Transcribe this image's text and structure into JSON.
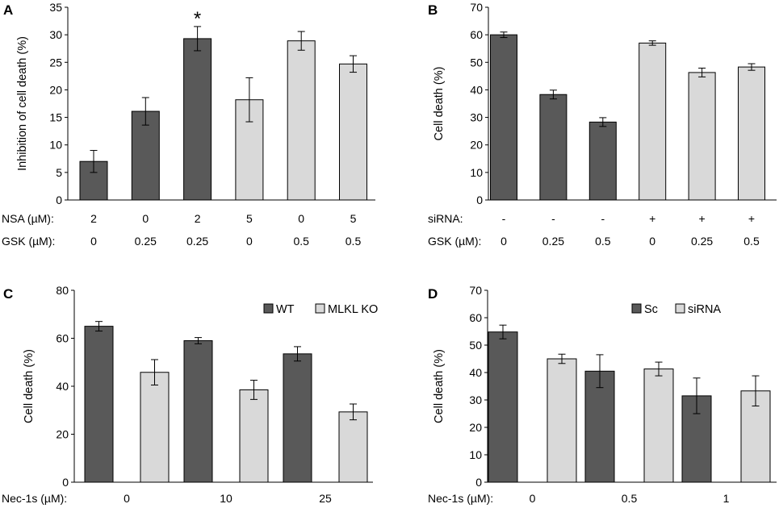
{
  "chart_data": [
    {
      "type": "bar",
      "panel": "A",
      "ylabel": "Inhibition of cell death (%)",
      "ylim": [
        0,
        35
      ],
      "yticks": [
        0,
        5,
        10,
        15,
        20,
        25,
        30,
        35
      ],
      "values": [
        7.0,
        16.1,
        29.3,
        18.2,
        28.9,
        24.7
      ],
      "errors": [
        2.0,
        2.5,
        2.2,
        4.0,
        1.7,
        1.5
      ],
      "colors": [
        "#595959",
        "#595959",
        "#595959",
        "#d9d9d9",
        "#d9d9d9",
        "#d9d9d9"
      ],
      "annotations": [
        "",
        "",
        "*",
        "",
        "",
        ""
      ],
      "rows": [
        {
          "label": "NSA (µM):",
          "values": [
            "2",
            "0",
            "2",
            "5",
            "0",
            "5"
          ]
        },
        {
          "label": "GSK (µM):",
          "values": [
            "0",
            "0.25",
            "0.25",
            "0",
            "0.5",
            "0.5"
          ]
        }
      ]
    },
    {
      "type": "bar",
      "panel": "B",
      "ylabel": "Cell death (%)",
      "ylim": [
        0,
        70
      ],
      "yticks": [
        0,
        10,
        20,
        30,
        40,
        50,
        60,
        70
      ],
      "values": [
        60.0,
        38.3,
        28.3,
        57.0,
        46.3,
        48.3
      ],
      "errors": [
        1.0,
        1.6,
        1.6,
        0.8,
        1.6,
        1.2
      ],
      "colors": [
        "#595959",
        "#595959",
        "#595959",
        "#d9d9d9",
        "#d9d9d9",
        "#d9d9d9"
      ],
      "annotations": [
        "",
        "",
        "",
        "",
        "",
        ""
      ],
      "rows": [
        {
          "label": "siRNA:",
          "values": [
            "-",
            "-",
            "-",
            "+",
            "+",
            "+"
          ]
        },
        {
          "label": "GSK (µM):",
          "values": [
            "0",
            "0.25",
            "0.5",
            "0",
            "0.25",
            "0.5"
          ]
        }
      ]
    },
    {
      "type": "bar",
      "panel": "C",
      "ylabel": "Cell death (%)",
      "ylim": [
        0,
        80
      ],
      "yticks": [
        0,
        20,
        40,
        60,
        80
      ],
      "categories": [
        "0",
        "10",
        "25"
      ],
      "series": [
        {
          "name": "WT",
          "color": "#595959",
          "values": [
            65.0,
            59.0,
            53.5
          ],
          "errors": [
            2.0,
            1.3,
            3.0
          ]
        },
        {
          "name": "MLKL KO",
          "color": "#d9d9d9",
          "values": [
            45.8,
            38.5,
            29.3
          ],
          "errors": [
            5.3,
            4.0,
            3.3
          ]
        }
      ],
      "legend": "top-right",
      "rows": [
        {
          "label": "Nec-1s (µM):",
          "values": [
            "0",
            "10",
            "25"
          ]
        }
      ]
    },
    {
      "type": "bar",
      "panel": "D",
      "ylabel": "Cell death (%)",
      "ylim": [
        0,
        70
      ],
      "yticks": [
        0,
        10,
        20,
        30,
        40,
        50,
        60,
        70
      ],
      "categories": [
        "0",
        "0.5",
        "1"
      ],
      "series": [
        {
          "name": "Sc",
          "color": "#595959",
          "values": [
            54.8,
            40.5,
            31.5
          ],
          "errors": [
            2.5,
            6.0,
            6.5
          ]
        },
        {
          "name": "siRNA",
          "color": "#d9d9d9",
          "values": [
            45.0,
            41.3,
            33.3
          ],
          "errors": [
            1.7,
            2.5,
            5.5
          ]
        }
      ],
      "legend": "top-right",
      "rows": [
        {
          "label": "Nec-1s (µM):",
          "values": [
            "0",
            "0.5",
            "1"
          ]
        }
      ]
    }
  ]
}
